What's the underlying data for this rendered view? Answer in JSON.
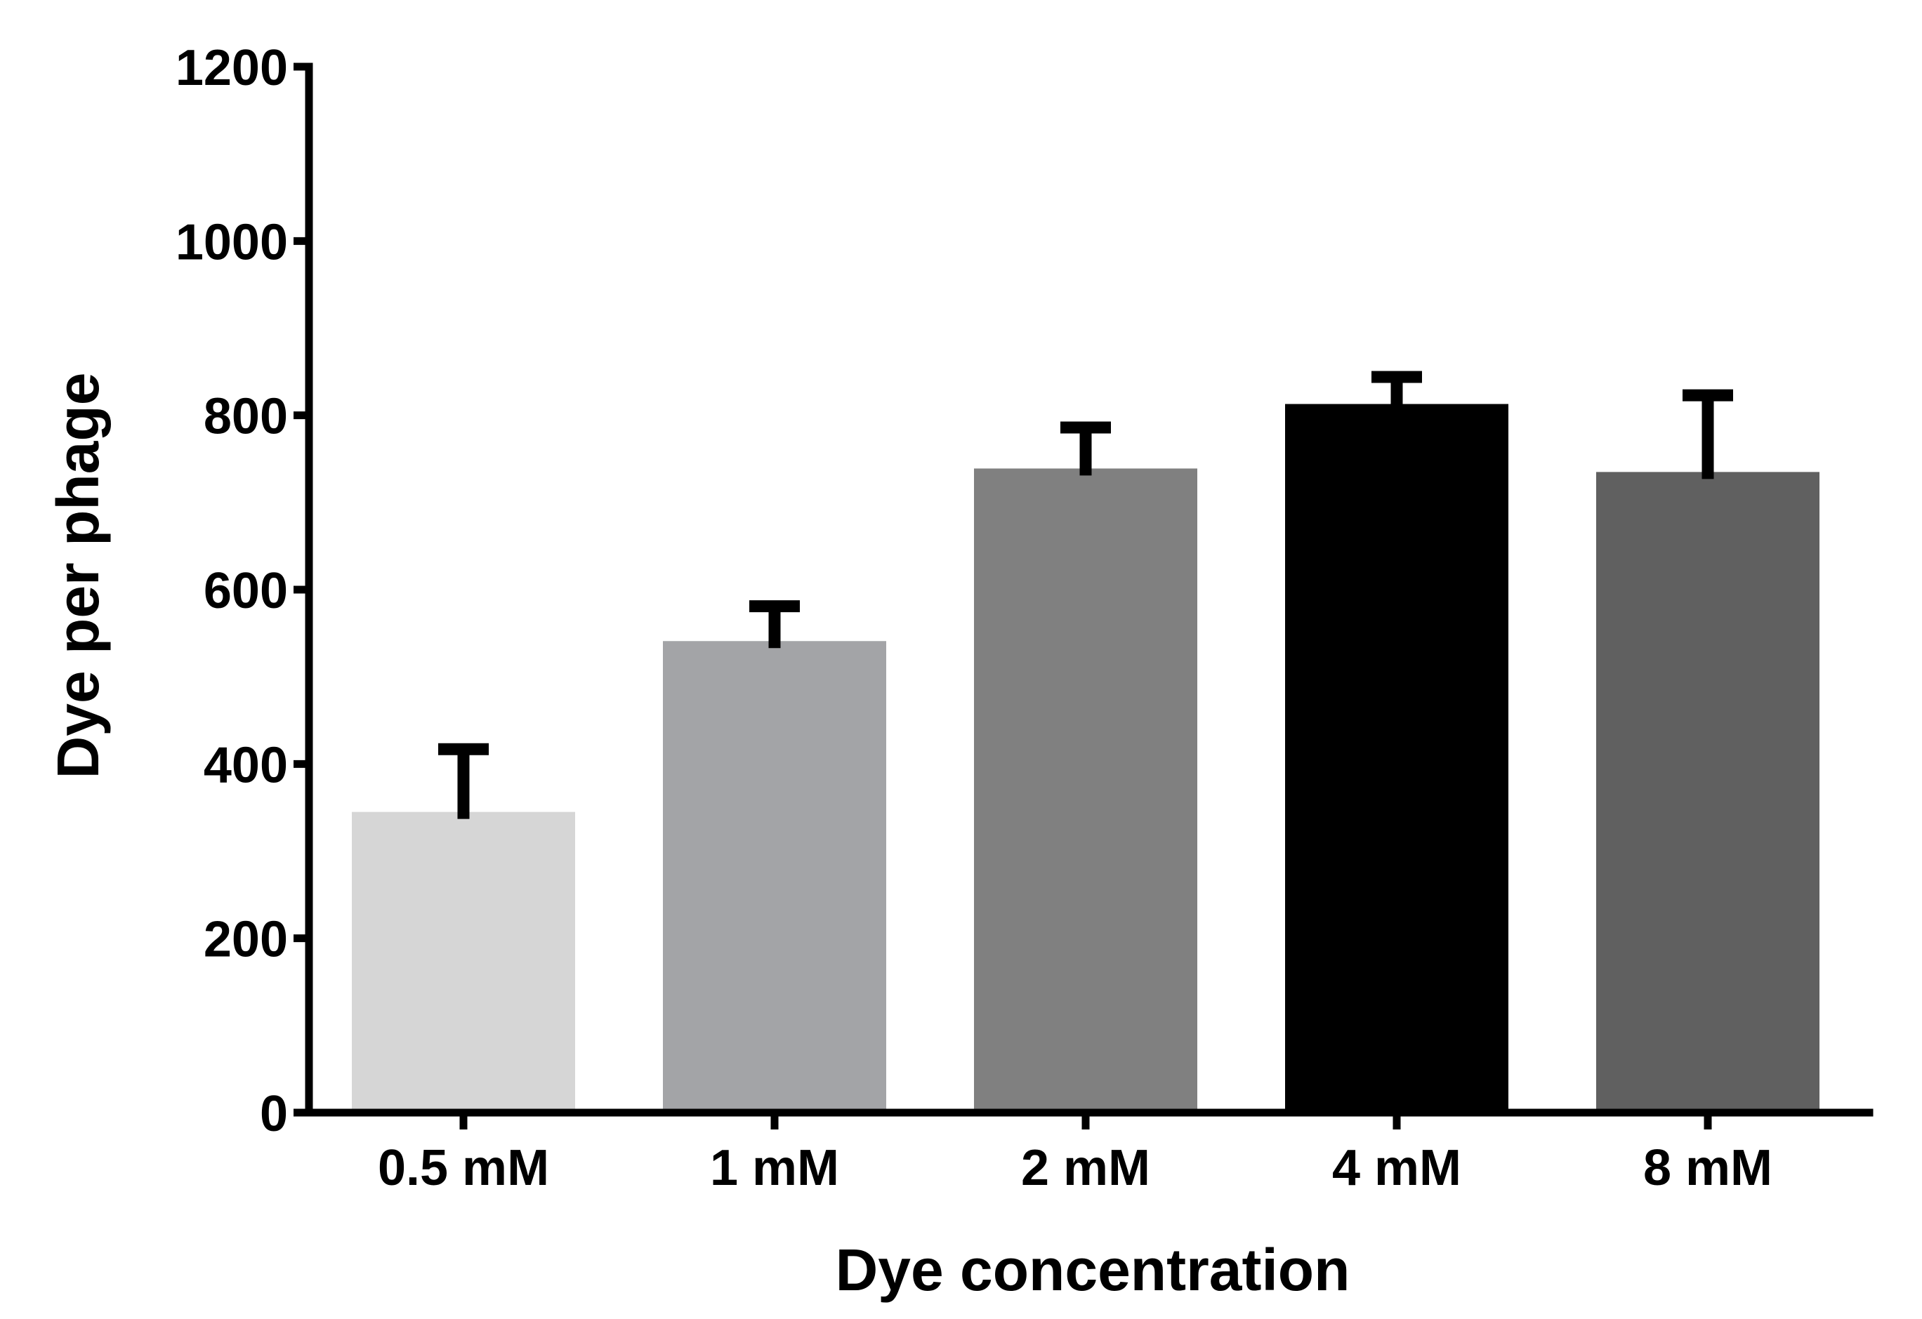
{
  "chart_data": {
    "type": "bar",
    "title": "",
    "xlabel": "Dye concentration",
    "ylabel": "Dye per phage",
    "categories": [
      "0.5 mM",
      "1 mM",
      "2 mM",
      "4 mM",
      "8 mM"
    ],
    "values": [
      345,
      541,
      739,
      813,
      735
    ],
    "error_upper": [
      72,
      40,
      47,
      31,
      88
    ],
    "bar_colors": [
      "#d6d6d6",
      "#a3a4a7",
      "#808080",
      "#000000",
      "#606060"
    ],
    "ylim": [
      0,
      1200
    ],
    "yticks": [
      0,
      200,
      400,
      600,
      800,
      1000,
      1200
    ],
    "ytick_labels": [
      "0",
      "200",
      "400",
      "600",
      "800",
      "1000",
      "1200"
    ],
    "grid": false,
    "legend": "none"
  }
}
